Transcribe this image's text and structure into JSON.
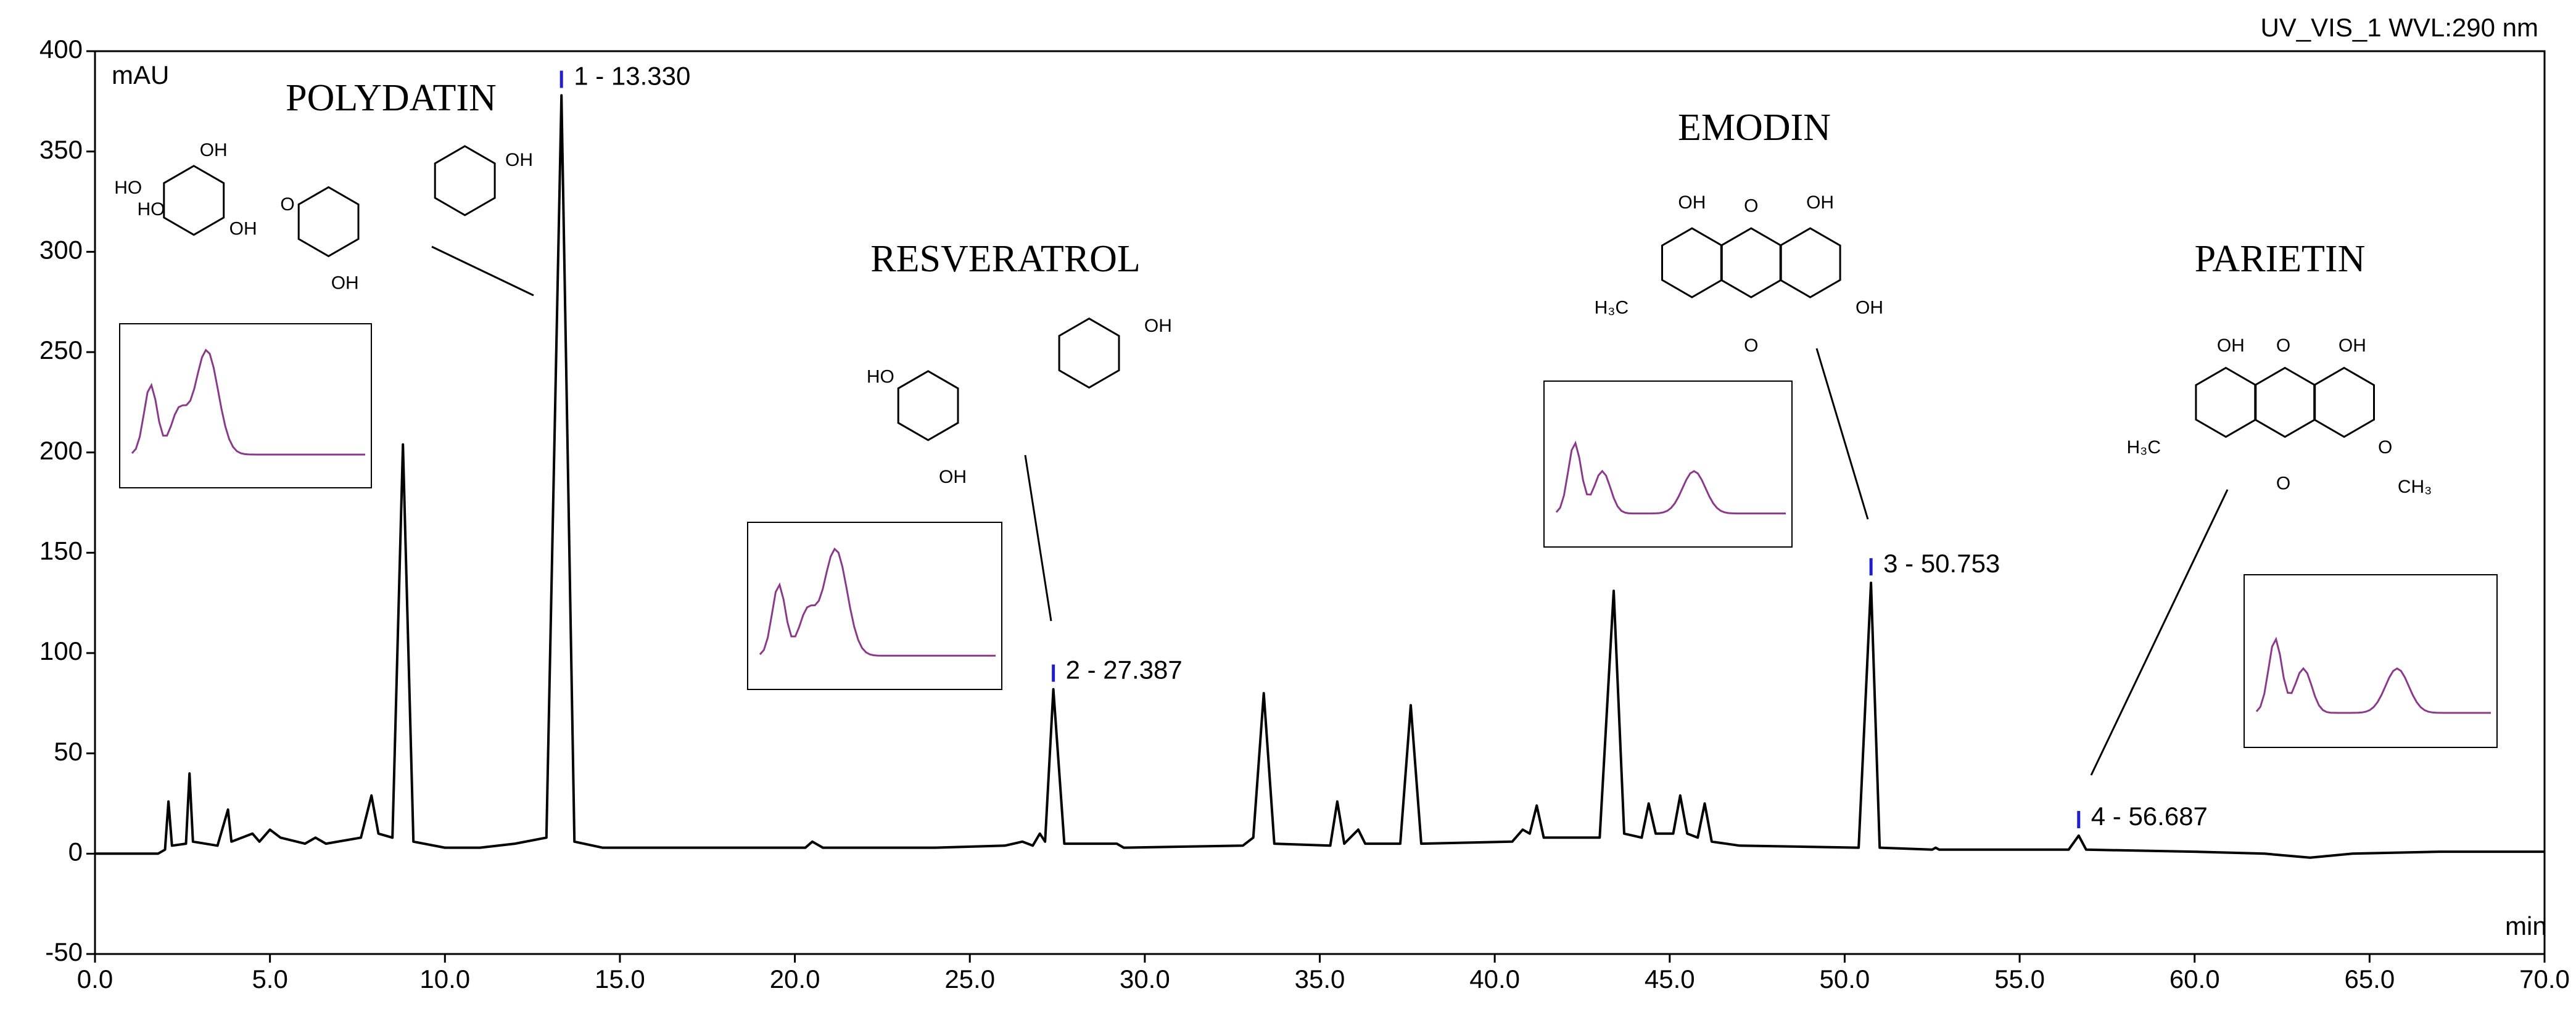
{
  "chart_data": {
    "type": "line",
    "header": "UV_VIS_1 WVL:290 nm",
    "y_unit": "mAU",
    "x_unit": "min",
    "xlim": [
      0,
      70
    ],
    "ylim": [
      -50,
      400
    ],
    "xticks": [
      {
        "value": 0,
        "label": "0.0"
      },
      {
        "value": 5,
        "label": "5.0"
      },
      {
        "value": 10,
        "label": "10.0"
      },
      {
        "value": 15,
        "label": "15.0"
      },
      {
        "value": 20,
        "label": "20.0"
      },
      {
        "value": 25,
        "label": "25.0"
      },
      {
        "value": 30,
        "label": "30.0"
      },
      {
        "value": 35,
        "label": "35.0"
      },
      {
        "value": 40,
        "label": "40.0"
      },
      {
        "value": 45,
        "label": "45.0"
      },
      {
        "value": 50,
        "label": "50.0"
      },
      {
        "value": 55,
        "label": "55.0"
      },
      {
        "value": 60,
        "label": "60.0"
      },
      {
        "value": 65,
        "label": "65.0"
      },
      {
        "value": 70,
        "label": "70.0"
      }
    ],
    "yticks": [
      -50,
      0,
      50,
      100,
      150,
      200,
      250,
      300,
      350,
      400
    ],
    "x": [
      0,
      1.8,
      2.0,
      2.1,
      2.2,
      2.6,
      2.7,
      2.8,
      3.5,
      3.8,
      3.9,
      4.5,
      4.7,
      5.0,
      5.3,
      6.0,
      6.3,
      6.6,
      7.6,
      7.9,
      8.1,
      8.5,
      8.8,
      9.1,
      10.0,
      11.0,
      12.0,
      12.9,
      13.33,
      13.7,
      14.5,
      17,
      20.3,
      20.5,
      20.8,
      24,
      26,
      26.5,
      26.8,
      27.0,
      27.15,
      27.387,
      27.7,
      29.2,
      29.4,
      32.8,
      33.1,
      33.4,
      33.7,
      35.3,
      35.5,
      35.7,
      36.1,
      36.3,
      37.3,
      37.6,
      37.9,
      40.5,
      40.8,
      41.0,
      41.2,
      41.4,
      43.0,
      43.4,
      43.7,
      44.2,
      44.4,
      44.6,
      45.1,
      45.3,
      45.5,
      45.8,
      46.0,
      46.2,
      47,
      50.4,
      50.753,
      51.0,
      52.5,
      52.6,
      52.7,
      56.4,
      56.687,
      56.9,
      60,
      62,
      63.3,
      64.5,
      67,
      70
    ],
    "series": [
      {
        "color": "#000000",
        "values": [
          0,
          0,
          2,
          26,
          4,
          5,
          40,
          6,
          4,
          22,
          6,
          10,
          6,
          12,
          8,
          5,
          8,
          5,
          8,
          29,
          10,
          8,
          204,
          6,
          3,
          3,
          5,
          8,
          378,
          6,
          3,
          3,
          3,
          6,
          3,
          3,
          4,
          6,
          4,
          10,
          6,
          82,
          5,
          5,
          3,
          4,
          8,
          80,
          5,
          4,
          26,
          5,
          12,
          5,
          5,
          74,
          5,
          6,
          12,
          10,
          24,
          8,
          8,
          131,
          10,
          8,
          25,
          10,
          10,
          29,
          10,
          8,
          25,
          6,
          4,
          3,
          135,
          3,
          2,
          3,
          2,
          2,
          9,
          2,
          1,
          0,
          -2,
          0,
          1,
          1
        ]
      }
    ],
    "peaks": [
      {
        "label": "1 - 13.330",
        "x": 13.33,
        "y": 378
      },
      {
        "label": "2 - 27.387",
        "x": 27.387,
        "y": 82
      },
      {
        "label": "3 - 50.753",
        "x": 50.753,
        "y": 135
      },
      {
        "label": "4 - 56.687",
        "x": 56.687,
        "y": 9
      }
    ],
    "compounds": [
      {
        "name": "POLYDATIN",
        "structure_labels": [
          "OH",
          "HO",
          "HO",
          "OH",
          "O",
          "OH",
          "OH"
        ]
      },
      {
        "name": "RESVERATROL",
        "structure_labels": [
          "HO",
          "OH",
          "OH"
        ]
      },
      {
        "name": "EMODIN",
        "structure_labels": [
          "OH",
          "O",
          "OH",
          "H₃C",
          "O",
          "OH"
        ]
      },
      {
        "name": "PARIETIN",
        "structure_labels": [
          "OH",
          "O",
          "OH",
          "H₃C",
          "O",
          "O",
          "CH₃"
        ]
      }
    ]
  }
}
